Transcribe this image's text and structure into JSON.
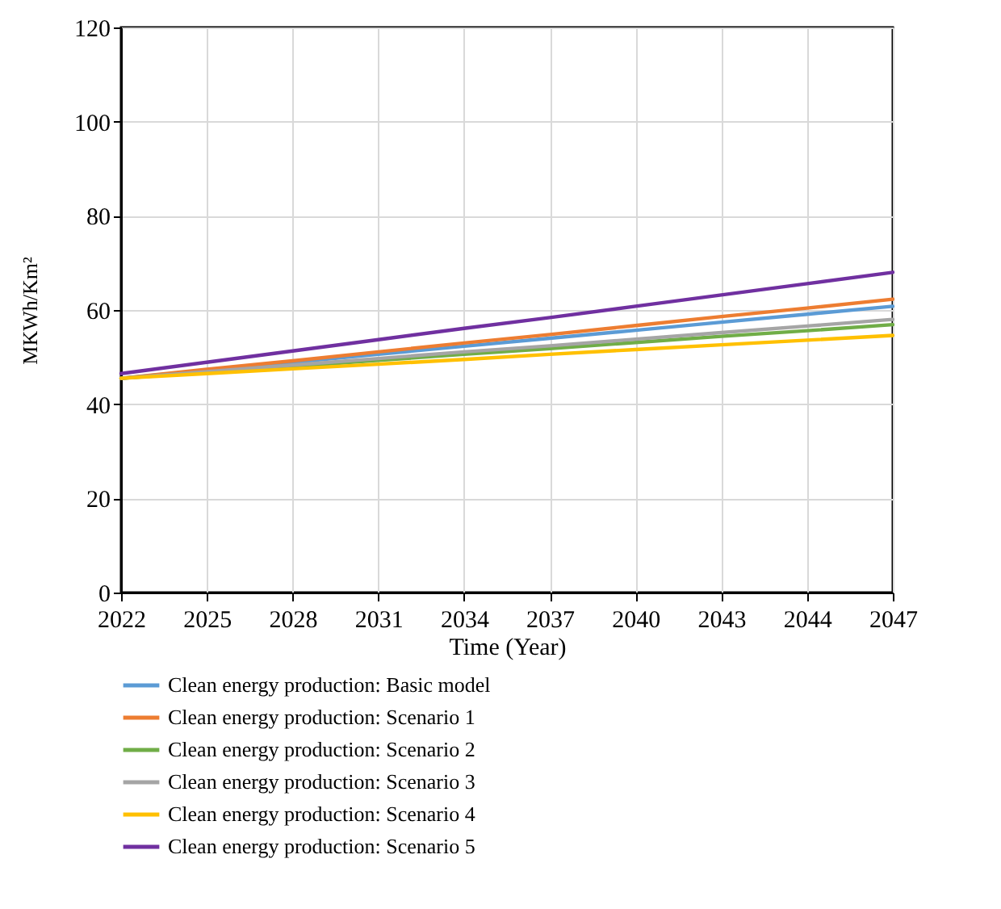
{
  "chart_data": {
    "type": "line",
    "xlabel": "Time (Year)",
    "ylabel": "MKWh/Km²",
    "categories": [
      "2022",
      "2025",
      "2028",
      "2031",
      "2034",
      "2037",
      "2040",
      "2043",
      "2044",
      "2047"
    ],
    "ylim": [
      0,
      120
    ],
    "yticks": [
      0,
      20,
      40,
      60,
      80,
      100,
      120
    ],
    "grid": true,
    "legend": "bottom",
    "marker": "none",
    "line_style": "solid",
    "series": [
      {
        "name": "Clean energy production: Basic model",
        "color": "#5b9bd5",
        "values": [
          45.5,
          47.2,
          48.9,
          50.6,
          52.3,
          54.0,
          55.7,
          57.4,
          59.1,
          60.8
        ]
      },
      {
        "name": "Clean energy production: Scenario 1",
        "color": "#ed7d31",
        "values": [
          45.5,
          47.4,
          49.2,
          51.1,
          53.0,
          54.8,
          56.7,
          58.6,
          60.4,
          62.3
        ]
      },
      {
        "name": "Clean energy production: Scenario 2",
        "color": "#70ad47",
        "values": [
          45.5,
          46.8,
          48.0,
          49.3,
          50.6,
          51.8,
          53.1,
          54.4,
          55.6,
          56.9
        ]
      },
      {
        "name": "Clean energy production: Scenario 3",
        "color": "#a5a5a5",
        "values": [
          45.5,
          46.9,
          48.3,
          49.7,
          51.1,
          52.4,
          53.8,
          55.2,
          56.6,
          58.0
        ]
      },
      {
        "name": "Clean energy production: Scenario 4",
        "color": "#ffc000",
        "values": [
          45.5,
          46.5,
          47.5,
          48.5,
          49.5,
          50.6,
          51.6,
          52.6,
          53.6,
          54.6
        ]
      },
      {
        "name": "Clean energy production: Scenario 5",
        "color": "#7030a0",
        "values": [
          46.5,
          48.9,
          51.3,
          53.7,
          56.1,
          58.4,
          60.8,
          63.2,
          65.6,
          68.0
        ]
      }
    ]
  }
}
